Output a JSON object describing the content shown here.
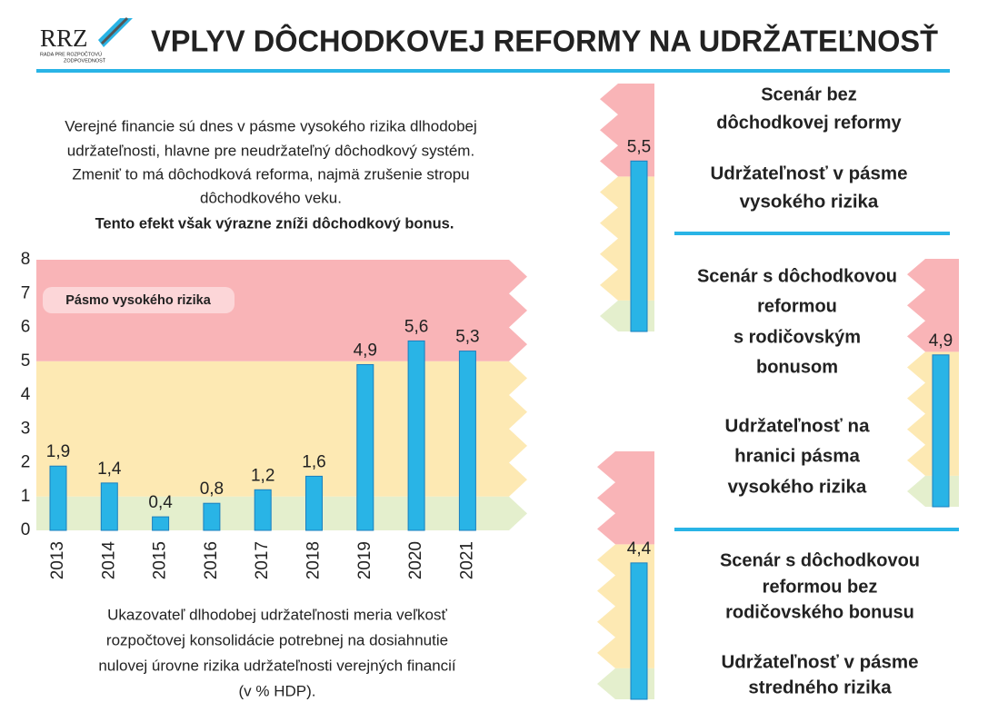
{
  "header": {
    "logo": "RRZ",
    "logo_subtitle": [
      "RADA PRE ROZPOČTOVÚ",
      "ZODPOVEDNOSŤ"
    ],
    "title": "VPLYV DÔCHODKOVEJ REFORMY NA UDRŽATEĽNOSŤ"
  },
  "intro": {
    "lines": [
      "Verejné financie sú dnes v pásme vysokého rizika dlhodobej",
      "udržateľnosti, hlavne pre neudržateľný dôchodkový systém.",
      "Zmeniť to má dôchodková reforma, najmä zrušenie stropu",
      "dôchodkového veku."
    ],
    "highlight": "Tento efekt však výrazne zníži dôchodkový bonus."
  },
  "footnote": {
    "lines": [
      "Ukazovateľ dlhodobej udržateľnosti meria veľkosť",
      "rozpočtovej konsolidácie potrebnej na dosiahnutie",
      "nulovej úrovne rizika udržateľnosti verejných financií",
      "(v % HDP)."
    ]
  },
  "scenarios": [
    {
      "title_lines": [
        "Scenár bez",
        "dôchodkovej reformy"
      ],
      "verdict_lines": [
        "Udržateľnosť v pásme",
        "vysokého rizika"
      ],
      "verdict_color": "#d8285c"
    },
    {
      "title_lines": [
        "Scenár s dôchodkovou",
        "reformou",
        "s rodičovským",
        "bonusom"
      ],
      "verdict_lines": [
        "Udržateľnosť na",
        "hranici  pásma",
        "vysokého rizika"
      ],
      "verdict_color": "#d8285c"
    },
    {
      "title_lines": [
        "Scenár s dôchodkovou",
        "reformou bez",
        "rodičovského bonusu"
      ],
      "verdict_lines": [
        "Udržateľnosť v pásme",
        "stredného rizika"
      ],
      "verdict_color": "#e8b52a"
    }
  ],
  "chart_data": [
    {
      "type": "bar",
      "categories": [
        "2013",
        "2014",
        "2015",
        "2016",
        "2017",
        "2018",
        "2019",
        "2020",
        "2021"
      ],
      "values": [
        1.9,
        1.4,
        0.4,
        0.8,
        1.2,
        1.6,
        4.9,
        5.6,
        5.3
      ],
      "value_labels": [
        "1,9",
        "1,4",
        "0,4",
        "0,8",
        "1,2",
        "1,6",
        "4,9",
        "5,6",
        "5,3"
      ],
      "color": "#29b4e6",
      "ylim": [
        0,
        8
      ],
      "yticks": [
        0,
        1,
        2,
        3,
        4,
        5,
        6,
        7,
        8
      ],
      "bands": [
        {
          "from": 0,
          "to": 1,
          "color": "#e4efcd"
        },
        {
          "from": 1,
          "to": 5,
          "color": "#fde9b3"
        },
        {
          "from": 5,
          "to": 8,
          "color": "#f9b4b7"
        }
      ],
      "annotation": "Pásmo vysokého rizika"
    },
    {
      "type": "bar",
      "values": [
        5.5
      ],
      "value_labels": [
        "5,5"
      ],
      "color": "#29b4e6",
      "ylim": [
        0,
        8
      ],
      "bands": [
        {
          "from": 0,
          "to": 1,
          "color": "#e4efcd"
        },
        {
          "from": 1,
          "to": 5,
          "color": "#fde9b3"
        },
        {
          "from": 5,
          "to": 8,
          "color": "#f9b4b7"
        }
      ]
    },
    {
      "type": "bar",
      "values": [
        4.9
      ],
      "value_labels": [
        "4,9"
      ],
      "color": "#29b4e6",
      "ylim": [
        0,
        8
      ],
      "bands": [
        {
          "from": 0,
          "to": 1,
          "color": "#e4efcd"
        },
        {
          "from": 1,
          "to": 5,
          "color": "#fde9b3"
        },
        {
          "from": 5,
          "to": 8,
          "color": "#f9b4b7"
        }
      ]
    },
    {
      "type": "bar",
      "values": [
        4.4
      ],
      "value_labels": [
        "4,4"
      ],
      "color": "#29b4e6",
      "ylim": [
        0,
        8
      ],
      "bands": [
        {
          "from": 0,
          "to": 1,
          "color": "#e4efcd"
        },
        {
          "from": 1,
          "to": 5,
          "color": "#fde9b3"
        },
        {
          "from": 5,
          "to": 8,
          "color": "#f9b4b7"
        }
      ]
    }
  ]
}
